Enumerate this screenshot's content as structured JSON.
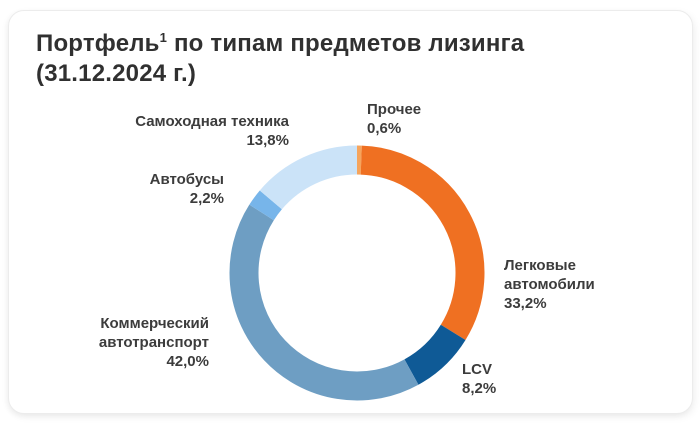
{
  "header": {
    "title_line1_main": "Портфель",
    "title_line1_footnote": "1",
    "title_line1_rest": " по типам предметов лизинга",
    "title_line2": "(31.12.2024 г.)"
  },
  "chart_data": {
    "type": "pie",
    "subtype": "donut",
    "title": "Портфель по типам предметов лизинга (31.12.2024 г.)",
    "unit": "%",
    "start_angle_deg": 0,
    "direction": "clockwise",
    "donut_hole_ratio": 0.77,
    "legend_position": "labels-around-chart",
    "segments": [
      {
        "label": "Прочее",
        "value": 0.6,
        "display": "0,6%",
        "color": "#F6A45C"
      },
      {
        "label": "Легковые автомобили",
        "value": 33.2,
        "display": "33,2%",
        "color": "#EF7022"
      },
      {
        "label": "LCV",
        "value": 8.2,
        "display": "8,2%",
        "color": "#0F5A96"
      },
      {
        "label": "Коммерческий автотранспорт",
        "value": 42.0,
        "display": "42,0%",
        "color": "#6E9EC3"
      },
      {
        "label": "Автобусы",
        "value": 2.2,
        "display": "2,2%",
        "color": "#77B5EA"
      },
      {
        "label": "Самоходная техника",
        "value": 13.8,
        "display": "13,8%",
        "color": "#CBE3F8"
      }
    ]
  }
}
